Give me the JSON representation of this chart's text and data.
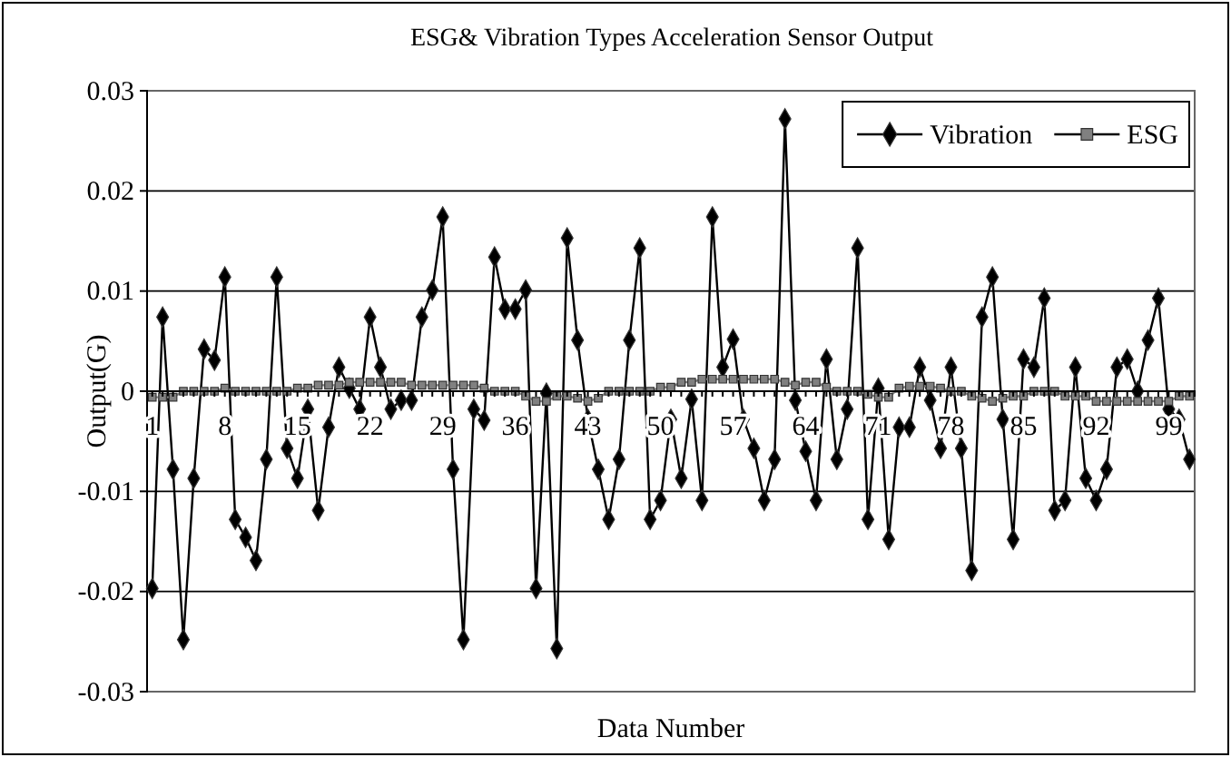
{
  "chart_data": {
    "type": "line",
    "title": "ESG& Vibration Types Acceleration Sensor Output",
    "xlabel": "Data Number",
    "ylabel": "Output(G)",
    "categories": [
      "1",
      null,
      null,
      null,
      null,
      null,
      null,
      "8",
      null,
      null,
      null,
      null,
      null,
      null,
      "15",
      null,
      null,
      null,
      null,
      null,
      null,
      "22",
      null,
      null,
      null,
      null,
      null,
      null,
      "29",
      null,
      null,
      null,
      null,
      null,
      null,
      "36",
      null,
      null,
      null,
      null,
      null,
      null,
      "43",
      null,
      null,
      null,
      null,
      null,
      null,
      "50",
      null,
      null,
      null,
      null,
      null,
      null,
      "57",
      null,
      null,
      null,
      null,
      null,
      null,
      "64",
      null,
      null,
      null,
      null,
      null,
      null,
      "71",
      null,
      null,
      null,
      null,
      null,
      null,
      "78",
      null,
      null,
      null,
      null,
      null,
      null,
      "85",
      null,
      null,
      null,
      null,
      null,
      null,
      "92",
      null,
      null,
      null,
      null,
      null,
      null,
      "99",
      null,
      null
    ],
    "series": [
      {
        "name": "Vibration",
        "color": "#000000",
        "marker": "diamond",
        "values": [
          -0.0197,
          0.0074,
          -0.0078,
          -0.0248,
          -0.0087,
          0.0042,
          0.0031,
          0.0114,
          -0.0128,
          -0.0146,
          -0.0169,
          -0.0068,
          0.0114,
          -0.0057,
          -0.0087,
          -0.0018,
          -0.0119,
          -0.0036,
          0.0024,
          0.0003,
          -0.0018,
          0.0074,
          0.0024,
          -0.0018,
          -0.0009,
          -0.0009,
          0.0074,
          0.0101,
          0.0174,
          -0.0078,
          -0.0248,
          -0.0018,
          -0.0029,
          0.0134,
          0.0082,
          0.0082,
          0.0101,
          -0.0197,
          -0.0002,
          -0.0257,
          0.0153,
          0.0051,
          -0.0028,
          -0.0078,
          -0.0128,
          -0.0068,
          0.0051,
          0.0143,
          -0.0128,
          -0.0109,
          -0.0028,
          -0.0087,
          -0.0008,
          -0.0109,
          0.0174,
          0.0024,
          0.0052,
          -0.0028,
          -0.0057,
          -0.0109,
          -0.0068,
          0.0272,
          -0.0009,
          -0.006,
          -0.0109,
          0.0032,
          -0.0068,
          -0.0018,
          0.0143,
          -0.0128,
          0.0003,
          -0.0148,
          -0.0036,
          -0.0036,
          0.0024,
          -0.0009,
          -0.0057,
          0.0024,
          -0.0057,
          -0.0179,
          0.0074,
          0.0114,
          -0.0028,
          -0.0148,
          0.0032,
          0.0024,
          0.0093,
          -0.0119,
          -0.0109,
          0.0024,
          -0.0087,
          -0.0109,
          -0.0078,
          0.0024,
          0.0032,
          0,
          0.0051,
          0.0093,
          -0.0018,
          -0.0028,
          -0.0068
        ]
      },
      {
        "name": "ESG",
        "color": "#808080",
        "marker": "square",
        "values": [
          -0.0006,
          -0.0006,
          -0.0006,
          0,
          0,
          0,
          0,
          0.0003,
          0,
          0,
          0,
          0,
          0,
          0,
          0.0003,
          0.0003,
          0.0006,
          0.0006,
          0.0006,
          0.0009,
          0.0009,
          0.0009,
          0.0009,
          0.0009,
          0.0009,
          0.0006,
          0.0006,
          0.0006,
          0.0006,
          0.0006,
          0.0006,
          0.0006,
          0.0003,
          0,
          0,
          0,
          -0.0005,
          -0.001,
          -0.001,
          -0.0005,
          -0.0005,
          -0.0007,
          -0.001,
          -0.0007,
          0,
          0,
          0,
          0,
          0,
          0.0004,
          0.0004,
          0.0009,
          0.0009,
          0.0012,
          0.0012,
          0.0012,
          0.0012,
          0.0012,
          0.0012,
          0.0012,
          0.0012,
          0.0009,
          0.0006,
          0.0009,
          0.0009,
          0.0004,
          0,
          0,
          0,
          -0.0003,
          -0.0006,
          -0.0006,
          0.0003,
          0.0005,
          0.0005,
          0.0005,
          0.0003,
          0,
          0,
          -0.0005,
          -0.0007,
          -0.001,
          -0.0007,
          -0.0005,
          -0.0005,
          0,
          0,
          0,
          -0.0005,
          -0.0005,
          -0.0005,
          -0.001,
          -0.001,
          -0.001,
          -0.001,
          -0.001,
          -0.001,
          -0.001,
          -0.001,
          -0.0005,
          -0.0005
        ]
      }
    ],
    "ylim": [
      -0.03,
      0.03
    ],
    "yticks": [
      -0.03,
      -0.02,
      -0.01,
      0,
      0.01,
      0.02,
      0.03
    ],
    "grid": "y",
    "legend": "top right"
  }
}
